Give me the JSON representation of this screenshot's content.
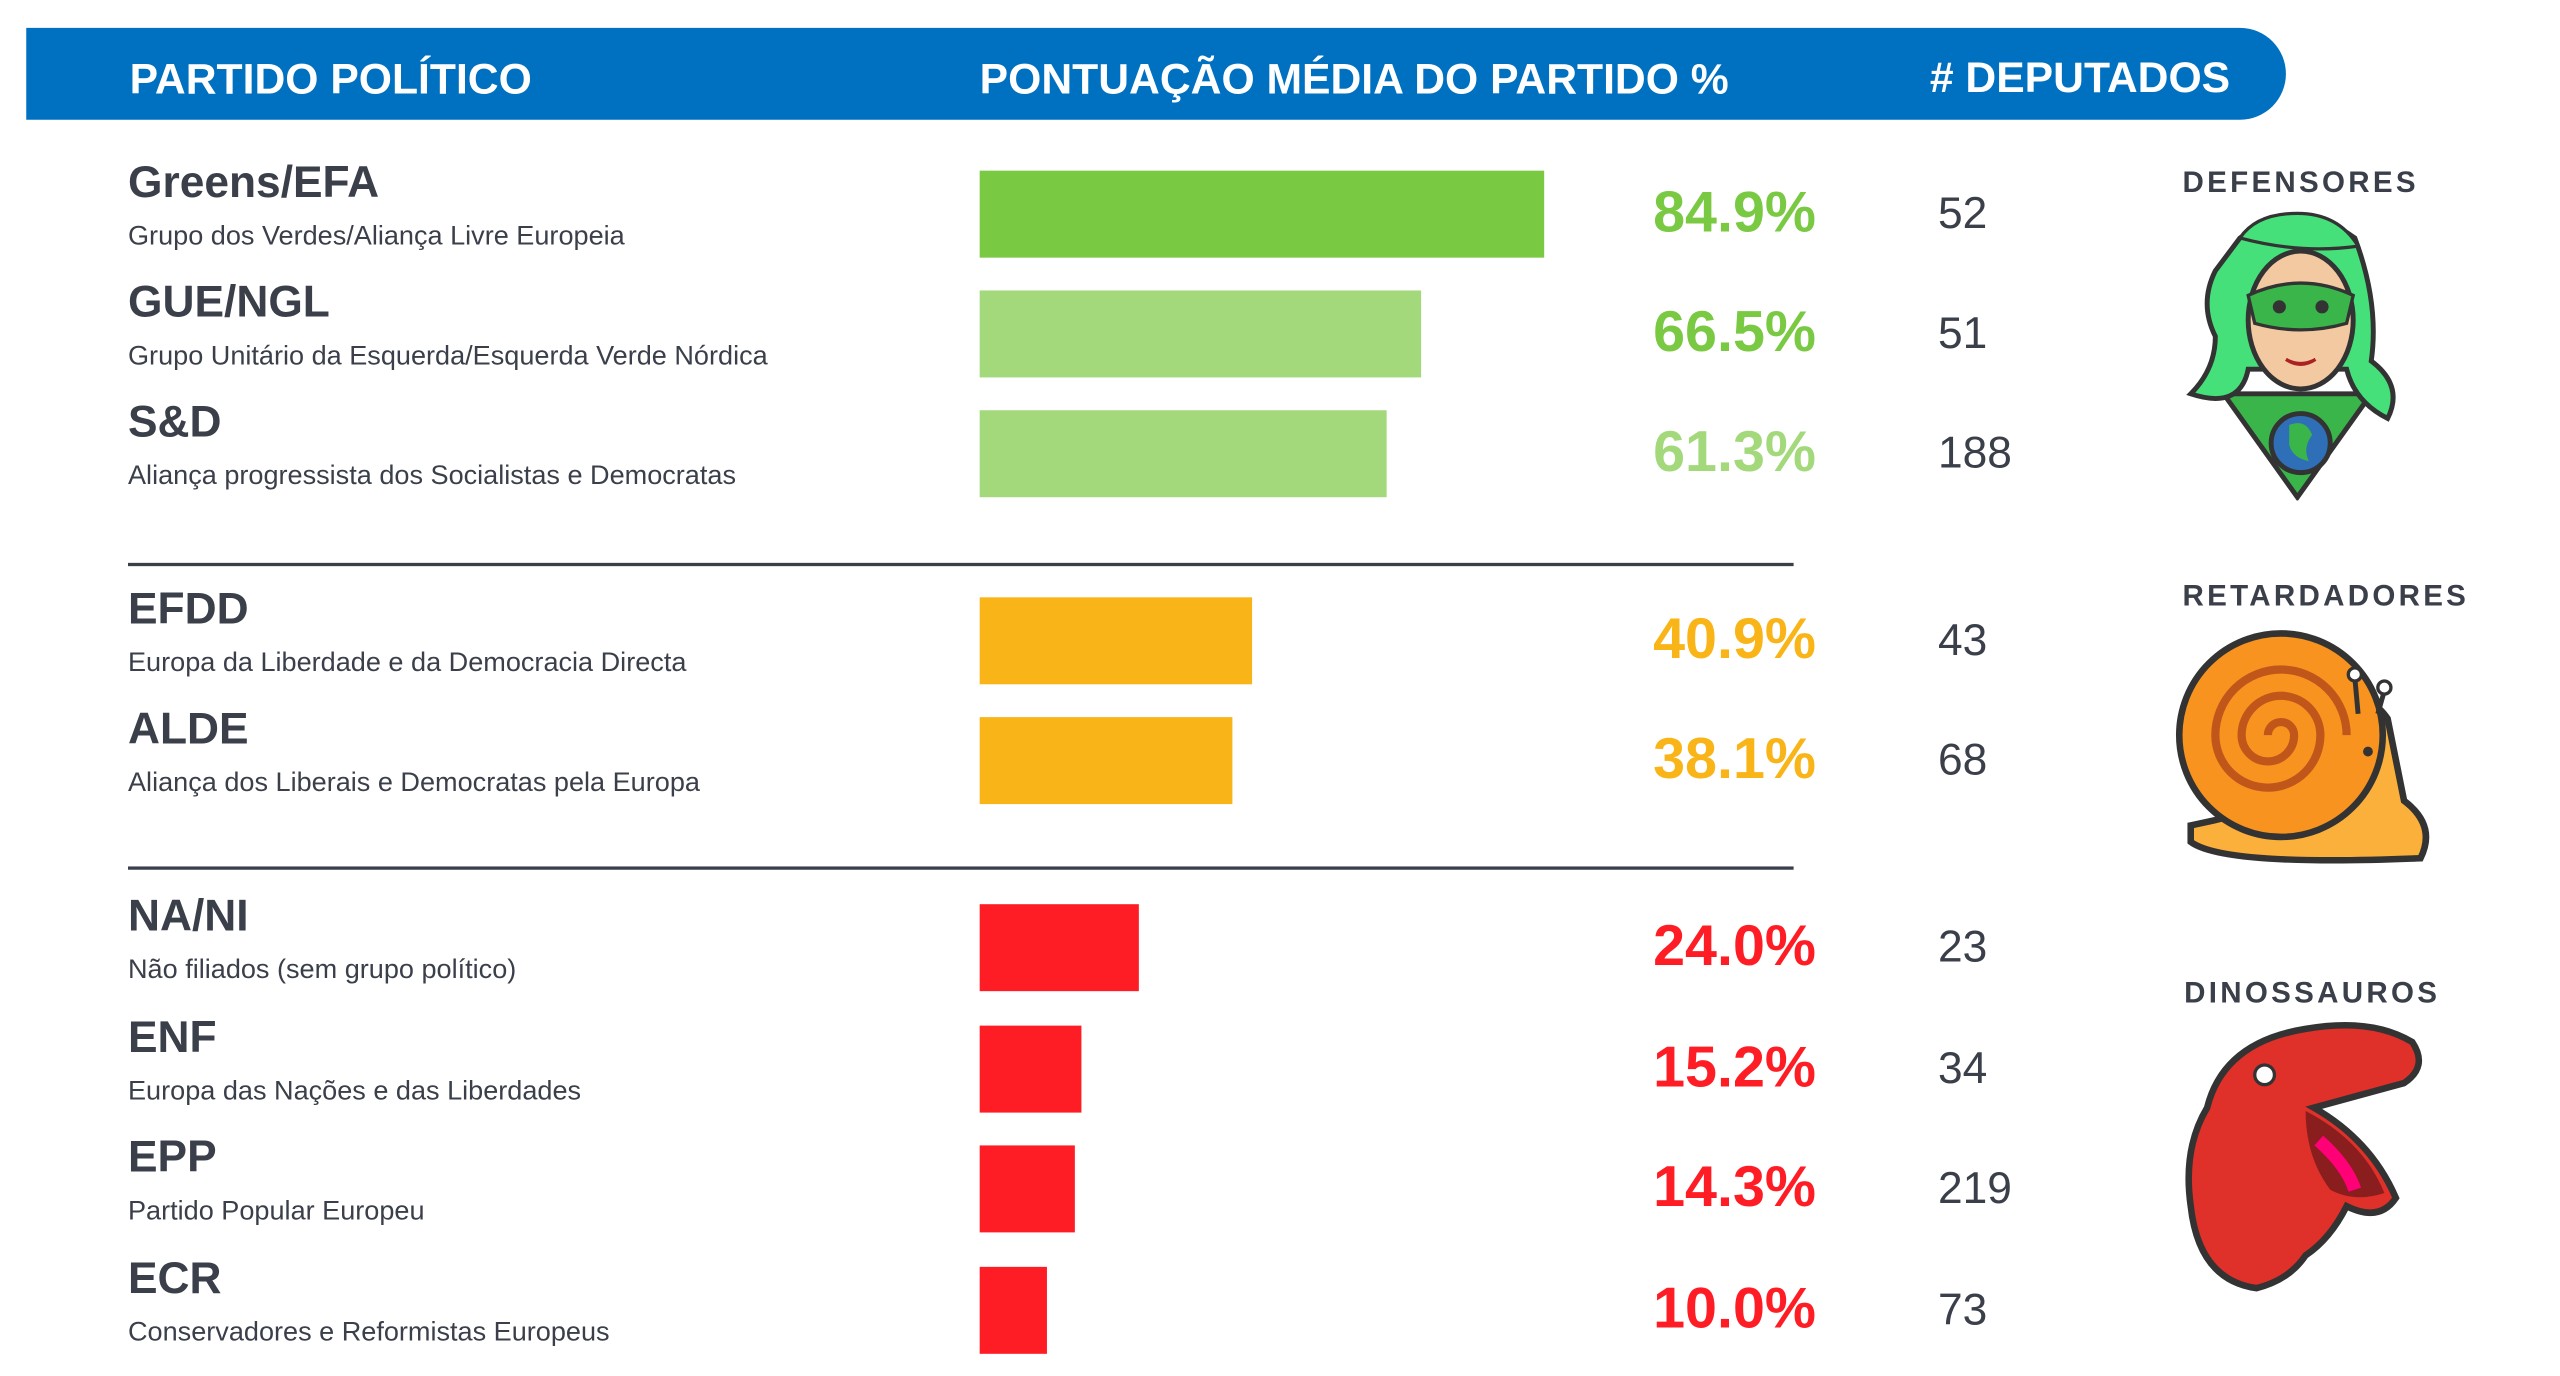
{
  "header": {
    "col_party": "PARTIDO POLÍTICO",
    "col_score": "PONTUAÇÃO MÉDIA DO PARTIDO %",
    "col_deputies": "# DEPUTADOS"
  },
  "colors": {
    "header": "#0070c0",
    "green": "#7ac943",
    "light_green": "#a3d97b",
    "orange": "#f9b418",
    "red": "#ff1d25",
    "text": "#3a3f4a"
  },
  "categories": [
    {
      "label": "DEFENSORES",
      "icon": "superhero-woman-icon"
    },
    {
      "label": "RETARDADORES",
      "icon": "snail-icon"
    },
    {
      "label": "DINOSSAUROS",
      "icon": "dinosaur-icon"
    }
  ],
  "chart_data": {
    "type": "bar",
    "orientation": "horizontal",
    "title": "PONTUAÇÃO MÉDIA DO PARTIDO %",
    "xlim": [
      0,
      100
    ],
    "categories": [
      "Greens/EFA",
      "GUE/NGL",
      "S&D",
      "EFDD",
      "ALDE",
      "NA/NI",
      "ENF",
      "EPP",
      "ECR"
    ],
    "values": [
      84.9,
      66.5,
      61.3,
      40.9,
      38.1,
      24.0,
      15.2,
      14.3,
      10.0
    ],
    "rows": [
      {
        "party": "Greens/EFA",
        "name": "Grupo dos Verdes/Aliança Livre Europeia",
        "score": 84.9,
        "label": "84.9%",
        "deputies": "52",
        "color": "#7ac943",
        "text_color": "#7ac943",
        "group": 0
      },
      {
        "party": "GUE/NGL",
        "name": "Grupo Unitário da Esquerda/Esquerda Verde Nórdica",
        "score": 66.5,
        "label": "66.5%",
        "deputies": "51",
        "color": "#a3d97b",
        "text_color": "#7ac943",
        "group": 0
      },
      {
        "party": "S&D",
        "name": "Aliança progressista dos Socialistas e Democratas",
        "score": 61.3,
        "label": "61.3%",
        "deputies": "188",
        "color": "#a3d97b",
        "text_color": "#a3d97b",
        "group": 0
      },
      {
        "party": "EFDD",
        "name": "Europa da Liberdade e da Democracia Directa",
        "score": 40.9,
        "label": "40.9%",
        "deputies": "43",
        "color": "#f9b418",
        "text_color": "#f9b418",
        "group": 1
      },
      {
        "party": "ALDE",
        "name": "Aliança dos Liberais e Democratas pela Europa",
        "score": 38.1,
        "label": "38.1%",
        "deputies": "68",
        "color": "#f9b418",
        "text_color": "#f9b418",
        "group": 1
      },
      {
        "party": "NA/NI",
        "name": "Não filiados (sem grupo político)",
        "score": 24.0,
        "label": "24.0%",
        "deputies": "23",
        "color": "#ff1d25",
        "text_color": "#ff1d25",
        "group": 2
      },
      {
        "party": "ENF",
        "name": "Europa das Nações e das Liberdades",
        "score": 15.2,
        "label": "15.2%",
        "deputies": "34",
        "color": "#ff1d25",
        "text_color": "#ff1d25",
        "group": 2
      },
      {
        "party": "EPP",
        "name": "Partido Popular Europeu",
        "score": 14.3,
        "label": "14.3%",
        "deputies": "219",
        "color": "#ff1d25",
        "text_color": "#ff1d25",
        "group": 2
      },
      {
        "party": "ECR",
        "name": "Conservadores e Reformistas Europeus",
        "score": 10.0,
        "label": "10.0%",
        "deputies": "73",
        "color": "#ff1d25",
        "text_color": "#ff1d25",
        "group": 2
      }
    ]
  }
}
